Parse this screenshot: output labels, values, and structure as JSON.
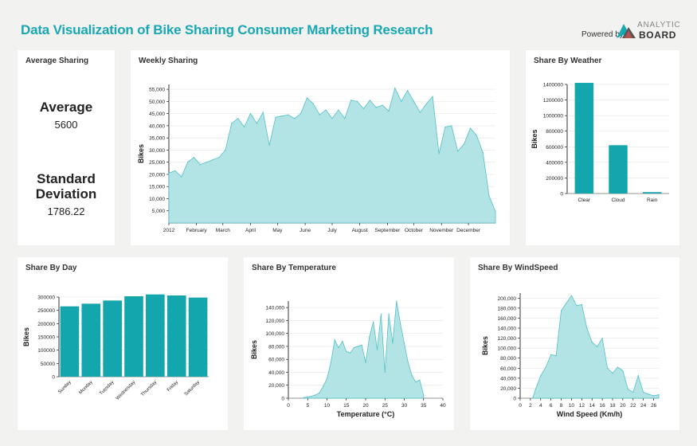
{
  "header": {
    "title": "Data Visualization of Bike Sharing Consumer Marketing Research",
    "powered_by": "Powered by",
    "logo_top": "ANALYTIC",
    "logo_bottom": "BOARD"
  },
  "average_panel": {
    "title": "Average Sharing",
    "average_label": "Average",
    "average_value": "5600",
    "std_label_line1": "Standard",
    "std_label_line2": "Deviation",
    "std_value": "1786.22"
  },
  "chart_data": [
    {
      "id": "weekly",
      "title": "Weekly Sharing",
      "type": "area",
      "ylabel": "Bikes",
      "xlabel": "",
      "ylim": [
        0,
        57000
      ],
      "yticks": [
        5000,
        10000,
        15000,
        20000,
        25000,
        30000,
        35000,
        40000,
        45000,
        50000,
        55000
      ],
      "ytick_labels": [
        "5,000",
        "10,000",
        "15,000",
        "20,000",
        "25,000",
        "30,000",
        "35,000",
        "40,000",
        "45,000",
        "50,000",
        "55,000"
      ],
      "xlim": [
        0,
        52
      ],
      "xticks": [
        0,
        4.4,
        8.6,
        13,
        17.3,
        21.7,
        26,
        30.4,
        34.8,
        39,
        43.4,
        47.7
      ],
      "xtick_labels": [
        "2012",
        "February",
        "March",
        "April",
        "May",
        "June",
        "July",
        "August",
        "September",
        "October",
        "November",
        "December"
      ],
      "x": [
        0,
        1,
        2,
        3,
        4,
        5,
        6,
        7,
        8,
        9,
        10,
        11,
        12,
        13,
        14,
        15,
        16,
        17,
        18,
        19,
        20,
        21,
        22,
        23,
        24,
        25,
        26,
        27,
        28,
        29,
        30,
        31,
        32,
        33,
        34,
        35,
        36,
        37,
        38,
        39,
        40,
        41,
        42,
        43,
        44,
        45,
        46,
        47,
        48,
        49,
        50,
        51,
        52
      ],
      "values": [
        20500,
        21500,
        19000,
        25000,
        27000,
        24000,
        25000,
        26000,
        27000,
        30000,
        41000,
        43000,
        39500,
        45000,
        41000,
        45500,
        32000,
        43500,
        44000,
        44500,
        43000,
        45000,
        51500,
        49000,
        44500,
        46500,
        43000,
        46500,
        43000,
        50500,
        50000,
        47000,
        50500,
        47500,
        48500,
        46000,
        55500,
        50000,
        54500,
        50000,
        45500,
        49000,
        52000,
        28500,
        39500,
        40000,
        29500,
        32500,
        39000,
        36000,
        29000,
        11000,
        4800
      ]
    },
    {
      "id": "weather",
      "title": "Share By Weather",
      "type": "bar",
      "ylabel": "Bikes",
      "xlabel": "",
      "ylim": [
        0,
        1400000
      ],
      "yticks": [
        0,
        200000,
        400000,
        600000,
        800000,
        1000000,
        1200000,
        1400000
      ],
      "ytick_labels": [
        "0",
        "200000",
        "400000",
        "600000",
        "800000",
        "1000000",
        "1200000",
        "1400000"
      ],
      "categories": [
        "Clear",
        "Cloud",
        "Rain"
      ],
      "values": [
        1420000,
        620000,
        18000
      ]
    },
    {
      "id": "day",
      "title": "Share By Day",
      "type": "bar",
      "ylabel": "Bikes",
      "xlabel": "",
      "ylim": [
        0,
        300000
      ],
      "yticks": [
        0,
        50000,
        100000,
        150000,
        200000,
        250000,
        300000
      ],
      "ytick_labels": [
        "0",
        "50000",
        "100000",
        "150000",
        "200000",
        "250000",
        "300000"
      ],
      "categories": [
        "Sunday",
        "Monday",
        "Tuesday",
        "Wednesday",
        "Thursday",
        "Friday",
        "Saturday"
      ],
      "values": [
        265000,
        275000,
        287000,
        303000,
        310000,
        306000,
        298000
      ]
    },
    {
      "id": "temperature",
      "title": "Share By Temperature",
      "type": "area",
      "ylabel": "Bikes",
      "xlabel": "Temperature (°C)",
      "ylim": [
        0,
        150000
      ],
      "yticks": [
        0,
        20000,
        40000,
        60000,
        80000,
        100000,
        120000,
        140000
      ],
      "ytick_labels": [
        "0",
        "20,000",
        "40,000",
        "60,000",
        "80,000",
        "100,000",
        "120,000",
        "140,000"
      ],
      "xlim": [
        0,
        40
      ],
      "xticks": [
        0,
        5,
        10,
        15,
        20,
        25,
        30,
        35,
        40
      ],
      "xtick_labels": [
        "0",
        "5",
        "10",
        "15",
        "20",
        "25",
        "30",
        "35",
        "40"
      ],
      "x": [
        4,
        5,
        6,
        7,
        8,
        9,
        10,
        11,
        12,
        13,
        14,
        15,
        16,
        17,
        18,
        19,
        20,
        21,
        22,
        23,
        24,
        25,
        26,
        27,
        28,
        29,
        30,
        31,
        32,
        33,
        34,
        35
      ],
      "values": [
        1000,
        2000,
        3000,
        5000,
        8000,
        18000,
        30000,
        55000,
        90000,
        78000,
        88000,
        72000,
        70000,
        78000,
        80000,
        82000,
        55000,
        95000,
        118000,
        75000,
        130000,
        40000,
        130000,
        85000,
        150000,
        115000,
        85000,
        55000,
        35000,
        25000,
        28000,
        5000
      ]
    },
    {
      "id": "windspeed",
      "title": "Share By WindSpeed",
      "type": "area",
      "ylabel": "Bikes",
      "xlabel": "Wind Speed (Km/h)",
      "ylim": [
        0,
        210000
      ],
      "yticks": [
        0,
        20000,
        40000,
        60000,
        80000,
        100000,
        120000,
        140000,
        160000,
        180000,
        200000
      ],
      "ytick_labels": [
        "0",
        "20,000",
        "40,000",
        "60,000",
        "80,000",
        "100,000",
        "120,000",
        "140,000",
        "160,000",
        "180,000",
        "200,000"
      ],
      "xlim": [
        0,
        27
      ],
      "xticks": [
        0,
        2,
        4,
        6,
        8,
        10,
        12,
        14,
        16,
        18,
        20,
        22,
        24,
        26
      ],
      "xtick_labels": [
        "0",
        "2",
        "4",
        "6",
        "8",
        "10",
        "12",
        "14",
        "16",
        "18",
        "20",
        "22",
        "24",
        "26"
      ],
      "x": [
        2.5,
        3,
        4,
        5,
        6,
        7,
        8,
        9,
        10,
        11,
        12,
        13,
        14,
        15,
        16,
        17,
        18,
        19,
        20,
        21,
        22,
        23,
        24,
        25,
        26,
        27
      ],
      "values": [
        2000,
        18000,
        45000,
        62000,
        87000,
        85000,
        175000,
        190000,
        205000,
        185000,
        187000,
        140000,
        112000,
        103000,
        120000,
        60000,
        50000,
        62000,
        55000,
        18000,
        12000,
        45000,
        12000,
        8000,
        5000,
        7000
      ]
    }
  ],
  "colors": {
    "accent": "#19a7b3",
    "bar": "#13a6ad",
    "area_fill": "#b2e4e6",
    "area_stroke": "#53c0c7"
  }
}
